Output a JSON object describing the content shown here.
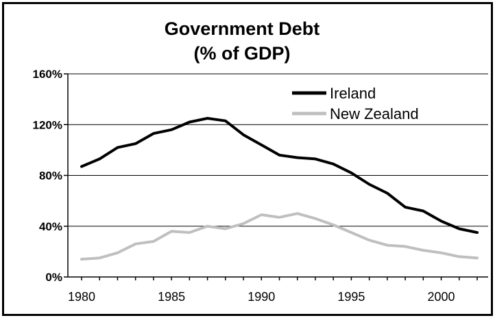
{
  "chart_data": {
    "type": "line",
    "title": [
      "Government Debt",
      "(% of GDP)"
    ],
    "xlabel": "",
    "ylabel": "",
    "xlim": [
      1980,
      2002
    ],
    "ylim": [
      0,
      160
    ],
    "x_ticks": [
      1980,
      1985,
      1990,
      1995,
      2000
    ],
    "y_ticks": [
      0,
      40,
      80,
      120,
      160
    ],
    "y_tick_labels": [
      "0%",
      "40%",
      "80%",
      "120%",
      "160%"
    ],
    "grid": "horizontal",
    "legend_position": "top-right",
    "x": [
      1980,
      1981,
      1982,
      1983,
      1984,
      1985,
      1986,
      1987,
      1988,
      1989,
      1990,
      1991,
      1992,
      1993,
      1994,
      1995,
      1996,
      1997,
      1998,
      1999,
      2000,
      2001,
      2002
    ],
    "series": [
      {
        "name": "Ireland",
        "color": "#000000",
        "values": [
          87,
          93,
          102,
          105,
          113,
          116,
          122,
          125,
          123,
          112,
          104,
          96,
          94,
          93,
          89,
          82,
          73,
          66,
          55,
          52,
          44,
          38,
          35
        ]
      },
      {
        "name": "New Zealand",
        "color": "#bfbfbf",
        "values": [
          14,
          15,
          19,
          26,
          28,
          36,
          35,
          40,
          38,
          42,
          49,
          47,
          50,
          46,
          41,
          35,
          29,
          25,
          24,
          21,
          19,
          16,
          15
        ]
      }
    ]
  }
}
